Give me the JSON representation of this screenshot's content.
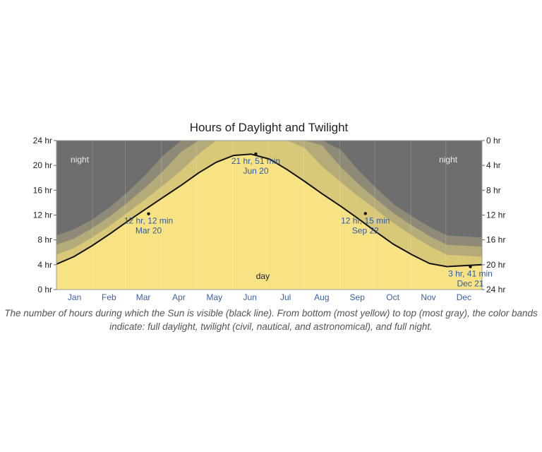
{
  "chart_data": {
    "type": "area",
    "title": "Hours of Daylight and Twilight",
    "left_axis": {
      "ticks": [
        "0 hr",
        "4 hr",
        "8 hr",
        "12 hr",
        "16 hr",
        "20 hr",
        "24 hr"
      ],
      "range": [
        0,
        24
      ]
    },
    "right_axis": {
      "ticks": [
        "24 hr",
        "20 hr",
        "16 hr",
        "12 hr",
        "8 hr",
        "4 hr",
        "0 hr"
      ],
      "range": [
        24,
        0
      ]
    },
    "x_categories": [
      "Jan",
      "Feb",
      "Mar",
      "Apr",
      "May",
      "Jun",
      "Jul",
      "Aug",
      "Sep",
      "Oct",
      "Nov",
      "Dec"
    ],
    "x_range_days": [
      0,
      365
    ],
    "bands": [
      {
        "key": "daylight",
        "color": "#f7e383",
        "values": [
          4.1,
          5.3,
          7.0,
          9.0,
          11.0,
          12.9,
          14.8,
          16.8,
          18.8,
          20.5,
          21.6,
          21.8,
          21.0,
          19.3,
          17.4,
          15.4,
          13.4,
          11.4,
          9.3,
          7.3,
          5.6,
          4.2,
          3.7,
          4.0
        ]
      },
      {
        "key": "civil_twilight",
        "color": "#d8c878",
        "values": [
          5.6,
          6.7,
          8.3,
          10.3,
          12.4,
          14.5,
          16.7,
          19.2,
          21.8,
          24,
          24,
          24,
          24,
          24,
          22.8,
          19.8,
          17.3,
          15.0,
          12.9,
          10.7,
          8.7,
          7.0,
          5.6,
          5.3
        ]
      },
      {
        "key": "nautical_twilight",
        "color": "#b5ab78",
        "values": [
          7.2,
          8.2,
          9.8,
          11.8,
          14.0,
          16.4,
          19.0,
          22.2,
          24,
          24,
          24,
          24,
          24,
          24,
          24,
          23.2,
          19.7,
          17.0,
          14.6,
          12.3,
          10.3,
          8.6,
          7.2,
          6.9
        ]
      },
      {
        "key": "astronomical_twilight",
        "color": "#8f8a77",
        "values": [
          8.7,
          9.7,
          11.2,
          13.3,
          15.7,
          18.4,
          21.5,
          24,
          24,
          24,
          24,
          24,
          24,
          24,
          24,
          24,
          22.5,
          19.2,
          16.4,
          13.8,
          11.8,
          10.1,
          8.7,
          8.4
        ]
      },
      {
        "key": "night",
        "color": "#6e6e6e"
      }
    ],
    "band_x_days": [
      0,
      15,
      30,
      46,
      61,
      76,
      91,
      107,
      122,
      137,
      152,
      167,
      183,
      198,
      213,
      228,
      244,
      259,
      274,
      289,
      305,
      320,
      335,
      365
    ],
    "daylight_line_color": "#111111",
    "annotations": [
      {
        "key": "mar",
        "day": 79,
        "hours": 12.2,
        "lines": [
          "12 hr, 12 min",
          "Mar 20"
        ]
      },
      {
        "key": "jun",
        "day": 171,
        "hours": 21.85,
        "lines": [
          "21 hr, 51 min",
          "Jun 20"
        ]
      },
      {
        "key": "sep",
        "day": 265,
        "hours": 12.25,
        "lines": [
          "12 hr, 15 min",
          "Sep 22"
        ]
      },
      {
        "key": "dec",
        "day": 355,
        "hours": 3.68,
        "lines": [
          "3 hr, 41 min",
          "Dec 21"
        ]
      }
    ],
    "region_labels": {
      "night_left": "night",
      "night_right": "night",
      "day": "day"
    }
  },
  "caption": "The number of hours during which the Sun is visible (black line). From bottom (most yellow) to top (most gray), the color bands indicate: full daylight, twilight (civil, nautical, and astronomical), and full night."
}
